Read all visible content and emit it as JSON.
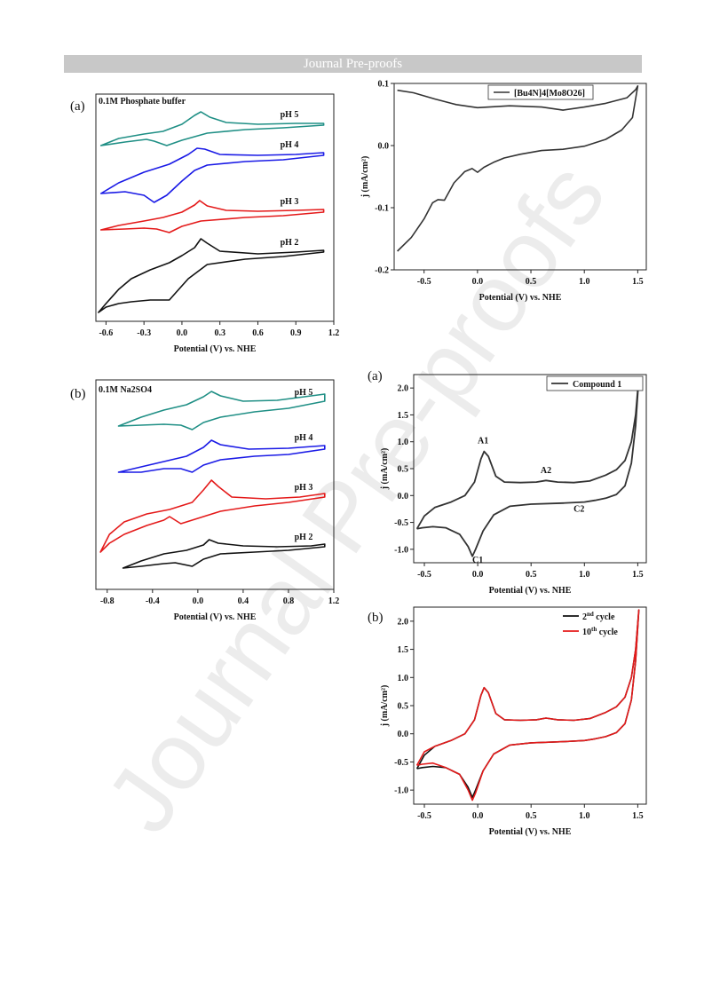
{
  "header": {
    "banner": "Journal Pre-proofs"
  },
  "watermark": "Journal Pre-proofs",
  "panel_labels": {
    "top_left": "(a)",
    "mid_left": "(b)",
    "top_right_small": "(a)",
    "bottom_right": "(b)"
  },
  "chart_data": [
    {
      "id": "fig_a_left",
      "type": "line",
      "title": "0.1M Phosphate buffer",
      "xlabel": "Potential (V) vs. NHE",
      "ylabel": "",
      "xlim": [
        -0.68,
        1.2
      ],
      "xticks": [
        -0.6,
        -0.3,
        0.0,
        0.3,
        0.6,
        0.9,
        1.2
      ],
      "xtick_labels": [
        "-0.6",
        "-0.3",
        "0.0",
        "0.3",
        "0.6",
        "0.9",
        "1.2"
      ],
      "series": [
        {
          "name": "pH 5",
          "color": "#1f8f85"
        },
        {
          "name": "pH 4",
          "color": "#1a1ae6"
        },
        {
          "name": "pH 3",
          "color": "#e41a1a"
        },
        {
          "name": "pH 2",
          "color": "#111111"
        }
      ]
    },
    {
      "id": "fig_polyoxo",
      "type": "line",
      "xlabel": "Potential (V) vs. NHE",
      "ylabel": "j (mA/cm²)",
      "xlim": [
        -0.78,
        1.58
      ],
      "ylim": [
        -0.2,
        0.1
      ],
      "xticks": [
        -0.5,
        0.0,
        0.5,
        1.0,
        1.5
      ],
      "xtick_labels": [
        "-0.5",
        "0.0",
        "0.5",
        "1.0",
        "1.5"
      ],
      "yticks": [
        -0.2,
        -0.1,
        0.0,
        0.1
      ],
      "ytick_labels": [
        "-0.2",
        "-0.1",
        "0.0",
        "0.1"
      ],
      "legend": {
        "label": "[Bu4N]4[Mo8O26]",
        "placement": "top-right"
      },
      "upper_curve": [
        [
          -0.75,
          0.089
        ],
        [
          -0.6,
          0.085
        ],
        [
          -0.4,
          0.075
        ],
        [
          -0.2,
          0.066
        ],
        [
          0.0,
          0.061
        ],
        [
          0.3,
          0.064
        ],
        [
          0.6,
          0.062
        ],
        [
          0.8,
          0.057
        ],
        [
          1.0,
          0.062
        ],
        [
          1.2,
          0.068
        ],
        [
          1.4,
          0.077
        ],
        [
          1.48,
          0.09
        ],
        [
          1.5,
          0.096
        ]
      ],
      "lower_curve": [
        [
          -0.75,
          -0.17
        ],
        [
          -0.62,
          -0.148
        ],
        [
          -0.5,
          -0.118
        ],
        [
          -0.42,
          -0.092
        ],
        [
          -0.37,
          -0.087
        ],
        [
          -0.31,
          -0.088
        ],
        [
          -0.22,
          -0.06
        ],
        [
          -0.12,
          -0.042
        ],
        [
          -0.05,
          -0.037
        ],
        [
          0.0,
          -0.043
        ],
        [
          0.06,
          -0.035
        ],
        [
          0.15,
          -0.027
        ],
        [
          0.25,
          -0.02
        ],
        [
          0.4,
          -0.014
        ],
        [
          0.6,
          -0.008
        ],
        [
          0.8,
          -0.006
        ],
        [
          1.0,
          -0.001
        ],
        [
          1.2,
          0.01
        ],
        [
          1.35,
          0.025
        ],
        [
          1.45,
          0.045
        ],
        [
          1.5,
          0.096
        ]
      ]
    },
    {
      "id": "fig_b_left",
      "type": "line",
      "title": "0.1M Na2SO4",
      "xlabel": "Potential (V) vs. NHE",
      "ylabel": "",
      "xlim": [
        -0.9,
        1.2
      ],
      "xticks": [
        -0.8,
        -0.4,
        0.0,
        0.4,
        0.8,
        1.2
      ],
      "xtick_labels": [
        "-0.8",
        "-0.4",
        "0.0",
        "0.4",
        "0.8",
        "1.2"
      ],
      "series": [
        {
          "name": "pH 5",
          "color": "#1f8f85"
        },
        {
          "name": "pH 4",
          "color": "#1a1ae6"
        },
        {
          "name": "pH 3",
          "color": "#e41a1a"
        },
        {
          "name": "pH 2",
          "color": "#111111"
        }
      ]
    },
    {
      "id": "fig_compound1",
      "type": "line",
      "xlabel": "Potential (V) vs. NHE",
      "ylabel": "j (mA/cm²)",
      "xlim": [
        -0.6,
        1.58
      ],
      "ylim": [
        -1.25,
        2.25
      ],
      "xticks": [
        -0.5,
        0.0,
        0.5,
        1.0,
        1.5
      ],
      "xtick_labels": [
        "-0.5",
        "0.0",
        "0.5",
        "1.0",
        "1.5"
      ],
      "yticks": [
        -1.0,
        -0.5,
        0.0,
        0.5,
        1.0,
        1.5,
        2.0
      ],
      "ytick_labels": [
        "-1.0",
        "-0.5",
        "0.0",
        "0.5",
        "1.0",
        "1.5",
        "2.0"
      ],
      "legend": {
        "label": "Compound 1",
        "placement": "top-right"
      },
      "annotations": [
        {
          "text": "A1",
          "x": 0.05,
          "y": 0.97
        },
        {
          "text": "A2",
          "x": 0.64,
          "y": 0.42
        },
        {
          "text": "C2",
          "x": 0.95,
          "y": -0.3
        },
        {
          "text": "C1",
          "x": 0.0,
          "y": -1.25
        }
      ],
      "forward_curve": [
        [
          -0.57,
          -0.62
        ],
        [
          -0.5,
          -0.38
        ],
        [
          -0.4,
          -0.22
        ],
        [
          -0.25,
          -0.12
        ],
        [
          -0.12,
          0.0
        ],
        [
          -0.03,
          0.25
        ],
        [
          0.03,
          0.68
        ],
        [
          0.06,
          0.82
        ],
        [
          0.1,
          0.73
        ],
        [
          0.17,
          0.36
        ],
        [
          0.25,
          0.25
        ],
        [
          0.4,
          0.24
        ],
        [
          0.55,
          0.25
        ],
        [
          0.64,
          0.28
        ],
        [
          0.75,
          0.25
        ],
        [
          0.9,
          0.24
        ],
        [
          1.05,
          0.27
        ],
        [
          1.2,
          0.38
        ],
        [
          1.3,
          0.48
        ],
        [
          1.38,
          0.65
        ],
        [
          1.44,
          1.0
        ],
        [
          1.48,
          1.5
        ],
        [
          1.51,
          2.2
        ]
      ],
      "reverse_curve": [
        [
          1.51,
          2.2
        ],
        [
          1.48,
          1.3
        ],
        [
          1.44,
          0.6
        ],
        [
          1.38,
          0.18
        ],
        [
          1.3,
          0.02
        ],
        [
          1.2,
          -0.05
        ],
        [
          1.1,
          -0.09
        ],
        [
          1.0,
          -0.12
        ],
        [
          0.8,
          -0.14
        ],
        [
          0.5,
          -0.16
        ],
        [
          0.3,
          -0.2
        ],
        [
          0.15,
          -0.36
        ],
        [
          0.05,
          -0.66
        ],
        [
          -0.02,
          -1.0
        ],
        [
          -0.05,
          -1.13
        ],
        [
          -0.09,
          -0.95
        ],
        [
          -0.17,
          -0.72
        ],
        [
          -0.3,
          -0.6
        ],
        [
          -0.42,
          -0.58
        ],
        [
          -0.52,
          -0.6
        ],
        [
          -0.57,
          -0.62
        ]
      ]
    },
    {
      "id": "fig_cycles",
      "type": "line",
      "xlabel": "Potential (V) vs. NHE",
      "ylabel": "j (mA/cm²)",
      "xlim": [
        -0.6,
        1.58
      ],
      "ylim": [
        -1.25,
        2.25
      ],
      "xticks": [
        -0.5,
        0.0,
        0.5,
        1.0,
        1.5
      ],
      "xtick_labels": [
        "-0.5",
        "0.0",
        "0.5",
        "1.0",
        "1.5"
      ],
      "yticks": [
        -1.0,
        -0.5,
        0.0,
        0.5,
        1.0,
        1.5,
        2.0
      ],
      "ytick_labels": [
        "-1.0",
        "-0.5",
        "0.0",
        "0.5",
        "1.0",
        "1.5",
        "2.0"
      ],
      "series": [
        {
          "name": "2nd cycle",
          "legend_base": "2",
          "legend_sup": "nd",
          "legend_rest": " cycle",
          "color": "#111111"
        },
        {
          "name": "10th cycle",
          "legend_base": "10",
          "legend_sup": "th",
          "legend_rest": " cycle",
          "color": "#e41a1a"
        }
      ]
    }
  ]
}
